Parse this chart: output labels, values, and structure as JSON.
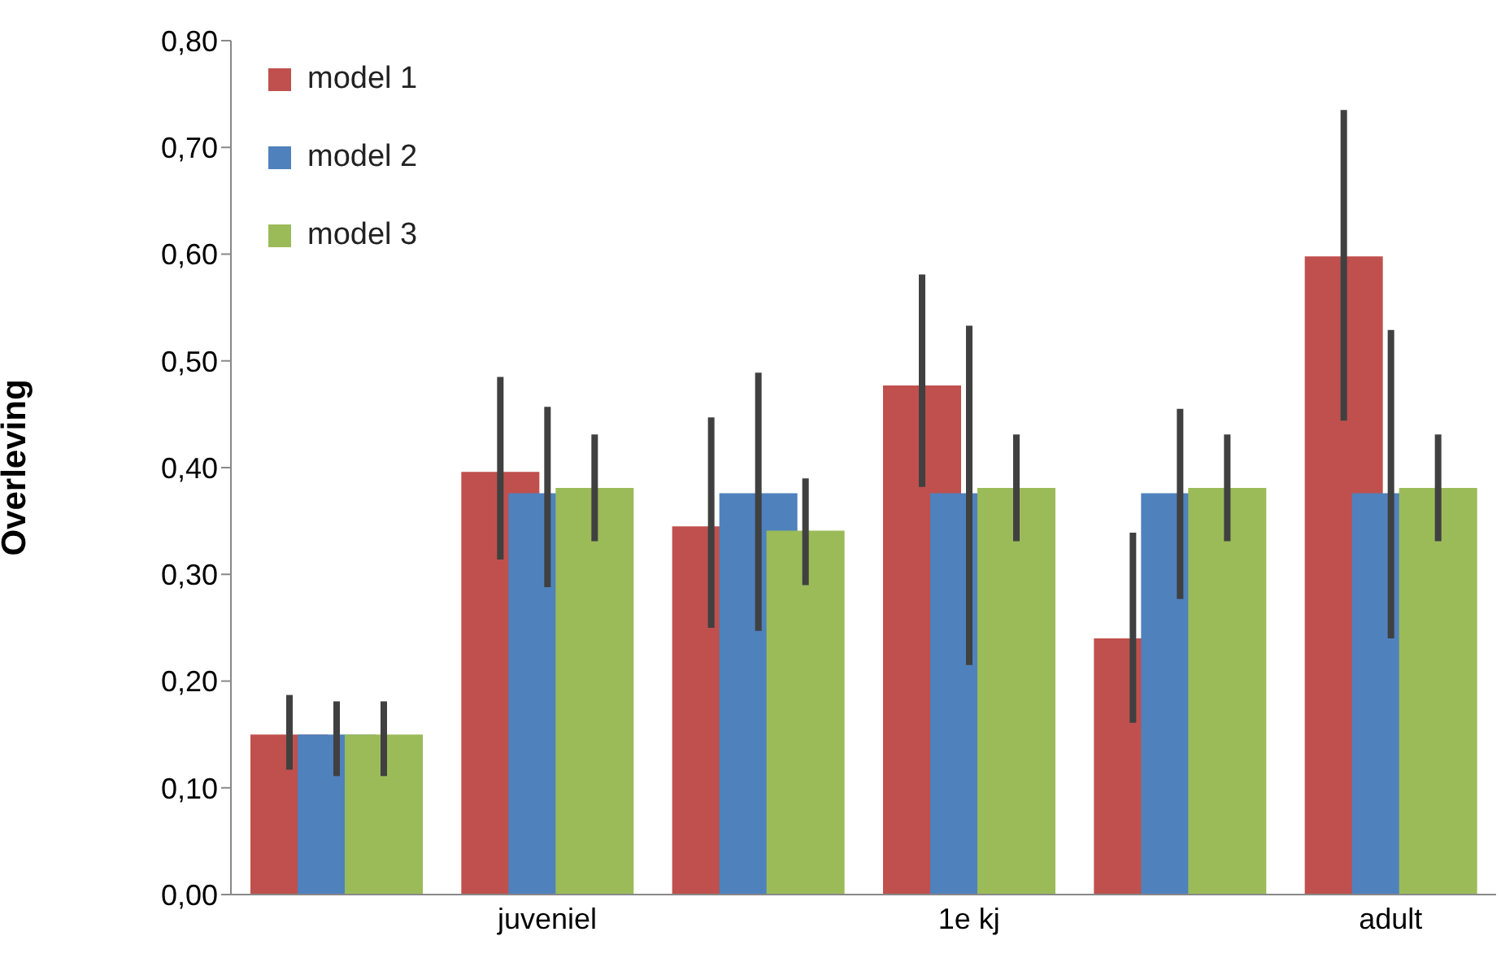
{
  "chart_data": {
    "type": "bar",
    "ylabel": "Overleving",
    "categories": [
      null,
      "juveniel",
      null,
      "1e kj",
      null,
      "adult"
    ],
    "series": [
      {
        "name": "model 1",
        "color": "#c0504d",
        "values": [
          0.15,
          0.396,
          0.345,
          0.477,
          0.24,
          0.598
        ],
        "errors": [
          [
            0.117,
            0.187
          ],
          [
            0.314,
            0.485
          ],
          [
            0.25,
            0.447
          ],
          [
            0.382,
            0.581
          ],
          [
            0.161,
            0.339
          ],
          [
            0.444,
            0.735
          ]
        ]
      },
      {
        "name": "model 2",
        "color": "#4f81bd",
        "values": [
          0.15,
          0.376,
          0.376,
          0.376,
          0.376,
          0.376
        ],
        "errors": [
          [
            0.111,
            0.181
          ],
          [
            0.288,
            0.457
          ],
          [
            0.247,
            0.489
          ],
          [
            0.215,
            0.533
          ],
          [
            0.277,
            0.455
          ],
          [
            0.24,
            0.529
          ]
        ]
      },
      {
        "name": "model 3",
        "color": "#9bbb59",
        "values": [
          0.15,
          0.381,
          0.341,
          0.381,
          0.381,
          0.381
        ],
        "errors": [
          [
            0.111,
            0.181
          ],
          [
            0.331,
            0.431
          ],
          [
            0.29,
            0.39
          ],
          [
            0.331,
            0.431
          ],
          [
            0.331,
            0.431
          ],
          [
            0.331,
            0.431
          ]
        ]
      }
    ],
    "ylim": [
      0,
      0.8
    ],
    "yticks": [
      {
        "value": 0,
        "label": "0,00"
      },
      {
        "value": 0.1,
        "label": "0,10"
      },
      {
        "value": 0.2,
        "label": "0,20"
      },
      {
        "value": 0.3,
        "label": "0,30"
      },
      {
        "value": 0.4,
        "label": "0,40"
      },
      {
        "value": 0.5,
        "label": "0,50"
      },
      {
        "value": 0.6,
        "label": "0,60"
      },
      {
        "value": 0.7,
        "label": "0,70"
      },
      {
        "value": 0.8,
        "label": "0,80"
      }
    ],
    "grid": false,
    "legend": "top left"
  }
}
